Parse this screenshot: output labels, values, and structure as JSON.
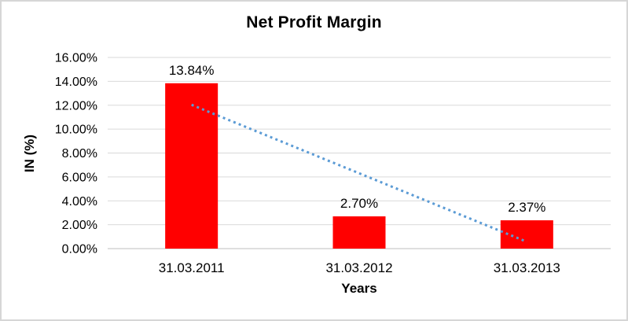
{
  "chart_data": {
    "type": "bar",
    "title": "Net Profit Margin",
    "xlabel": "Years",
    "ylabel": "IN (%)",
    "categories": [
      "31.03.2011",
      "31.03.2012",
      "31.03.2013"
    ],
    "values": [
      13.84,
      2.7,
      2.37
    ],
    "data_labels": [
      "13.84%",
      "2.70%",
      "2.37%"
    ],
    "ylim": [
      0,
      16
    ],
    "yticks": [
      {
        "value": 0,
        "label": "0.00%"
      },
      {
        "value": 2,
        "label": "2.00%"
      },
      {
        "value": 4,
        "label": "4.00%"
      },
      {
        "value": 6,
        "label": "6.00%"
      },
      {
        "value": 8,
        "label": "8.00%"
      },
      {
        "value": 10,
        "label": "10.00%"
      },
      {
        "value": 12,
        "label": "12.00%"
      },
      {
        "value": 14,
        "label": "14.00%"
      },
      {
        "value": 16,
        "label": "16.00%"
      }
    ],
    "grid": true,
    "legend_position": "none",
    "bar_color": "#FF0000",
    "trendline": {
      "type": "linear",
      "style": "dotted",
      "color": "#5B9BD5"
    },
    "gridline_color": "#D9D9D9",
    "axis_line_color": "#BFBFBF",
    "text_color": "#000000",
    "border_color": "#D6D6D6",
    "background_color": "#FFFFFF"
  }
}
